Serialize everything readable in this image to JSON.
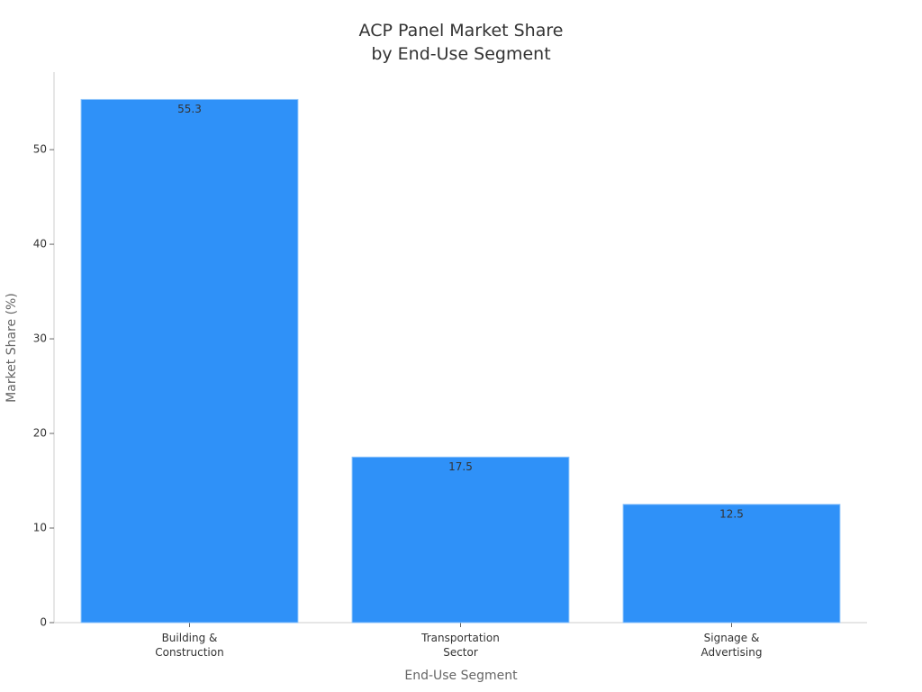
{
  "chart_data": {
    "type": "bar",
    "title": "ACP Panel Market Share\nby End-Use Segment",
    "x_label": "End-Use Segment",
    "y_label": "Market Share (%)",
    "categories": [
      "Building &\nConstruction",
      "Transportation\nSector",
      "Signage &\nAdvertising"
    ],
    "values": [
      55.3,
      17.5,
      12.5
    ],
    "color": "#2f91f8",
    "ylim": [
      0,
      58.2
    ],
    "yticks": [
      0,
      10,
      20,
      30,
      40,
      50
    ],
    "grid": false
  }
}
